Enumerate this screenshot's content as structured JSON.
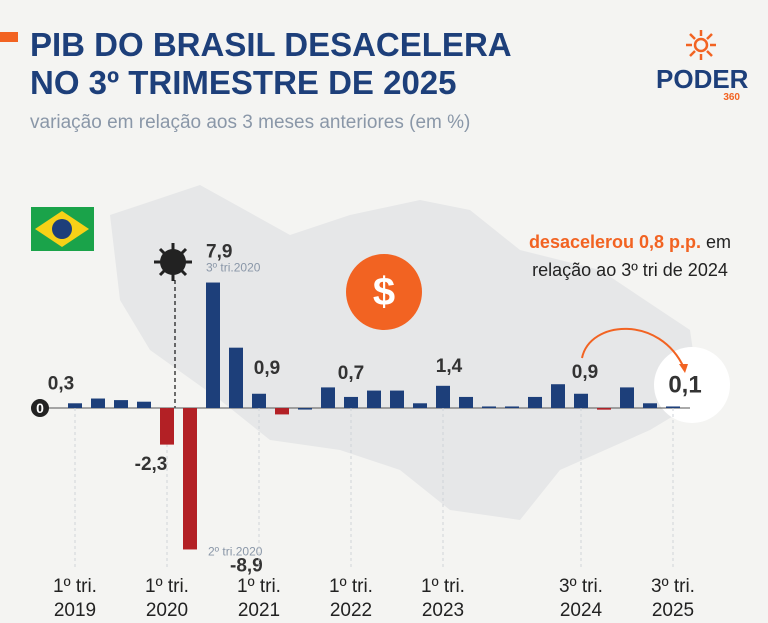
{
  "chart_data": {
    "type": "bar",
    "title": "PIB DO BRASIL DESACELERA NO 3º TRIMESTRE DE 2025",
    "subtitle": "variação em relação aos 3 meses anteriores (em %)",
    "brand": "PODER",
    "brand_sub": "360",
    "annotation_highlight": "desacelerou 0,8 p.p.",
    "annotation_text": "em relação ao 3º tri de 2024",
    "categories": [
      "1º tri. 2019",
      null,
      null,
      null,
      "1º tri. 2020",
      null,
      null,
      null,
      "1º tri. 2021",
      null,
      null,
      null,
      "1º tri. 2022",
      null,
      null,
      null,
      "1º tri. 2023",
      null,
      null,
      null,
      null,
      null,
      "3º tri. 2024",
      null,
      null,
      null,
      "3º tri. 2025"
    ],
    "values": [
      0.3,
      0.6,
      0.5,
      0.4,
      -2.3,
      -8.9,
      7.9,
      3.8,
      0.9,
      -0.4,
      0.0,
      1.3,
      0.7,
      1.1,
      1.1,
      0.3,
      1.4,
      0.7,
      0.1,
      0.1,
      0.7,
      1.5,
      0.9,
      -0.1,
      1.3,
      0.3,
      0.1
    ],
    "value_labels": [
      "0,3",
      null,
      null,
      null,
      "-2,3",
      "-8,9",
      "7,9",
      null,
      "0,9",
      null,
      null,
      null,
      "0,7",
      null,
      null,
      null,
      "1,4",
      null,
      null,
      null,
      null,
      null,
      "0,9",
      null,
      null,
      null,
      "0,1"
    ],
    "point_notes": [
      null,
      null,
      null,
      null,
      null,
      "2º tri.2020",
      "3º tri.2020",
      null,
      null,
      null,
      null,
      null,
      null,
      null,
      null,
      null,
      null,
      null,
      null,
      null,
      null,
      null,
      null,
      null,
      null,
      null,
      null
    ],
    "positive_color": "#1d3f7a",
    "negative_color": "#b32025",
    "ylim": [
      -9.5,
      8.5
    ],
    "yticks": [
      0
    ]
  }
}
